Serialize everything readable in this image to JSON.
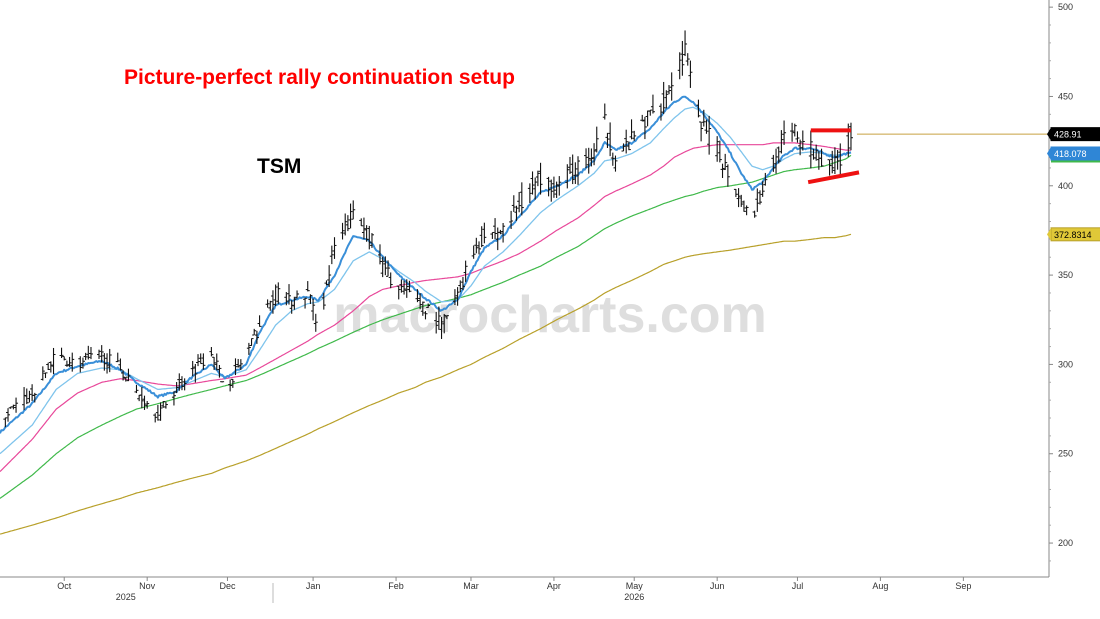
{
  "chart_data": {
    "type": "ohlc",
    "ticker": "TSM",
    "title": "Picture-perfect rally continuation setup",
    "watermark": "macrocharts.com",
    "ylim": [
      181,
      504
    ],
    "y_ticks": [
      200,
      250,
      300,
      350,
      400,
      450,
      500
    ],
    "x_months": [
      {
        "label": "Oct",
        "x": 8
      },
      {
        "label": "Nov",
        "x": 39
      },
      {
        "label": "Dec",
        "x": 69
      },
      {
        "label": "Jan",
        "x": 101
      },
      {
        "label": "Feb",
        "x": 132
      },
      {
        "label": "Mar",
        "x": 160
      },
      {
        "label": "Apr",
        "x": 191
      },
      {
        "label": "May",
        "x": 221
      },
      {
        "label": "Jun",
        "x": 252
      },
      {
        "label": "Jul",
        "x": 282
      },
      {
        "label": "Aug",
        "x": 313
      },
      {
        "label": "Sep",
        "x": 344
      }
    ],
    "x_years": [
      {
        "label": "2025",
        "x": 31
      },
      {
        "label": "2026",
        "x": 221
      }
    ],
    "x_range": [
      -16,
      376
    ],
    "price_anchors": [
      [
        -16,
        270
      ],
      [
        -4,
        283
      ],
      [
        5,
        305
      ],
      [
        13,
        300
      ],
      [
        22,
        305
      ],
      [
        29,
        298
      ],
      [
        35,
        285
      ],
      [
        43,
        272
      ],
      [
        50,
        287
      ],
      [
        55,
        295
      ],
      [
        63,
        308
      ],
      [
        68,
        287
      ],
      [
        76,
        305
      ],
      [
        81,
        322
      ],
      [
        87,
        340
      ],
      [
        93,
        335
      ],
      [
        99,
        340
      ],
      [
        103,
        322
      ],
      [
        109,
        365
      ],
      [
        116,
        385
      ],
      [
        122,
        372
      ],
      [
        127,
        355
      ],
      [
        133,
        342
      ],
      [
        139,
        338
      ],
      [
        143,
        332
      ],
      [
        149,
        322
      ],
      [
        155,
        338
      ],
      [
        160,
        362
      ],
      [
        165,
        372
      ],
      [
        172,
        375
      ],
      [
        178,
        390
      ],
      [
        186,
        405
      ],
      [
        192,
        400
      ],
      [
        200,
        410
      ],
      [
        206,
        418
      ],
      [
        210,
        435
      ],
      [
        214,
        415
      ],
      [
        220,
        425
      ],
      [
        227,
        440
      ],
      [
        232,
        448
      ],
      [
        236,
        462
      ],
      [
        240,
        476
      ],
      [
        243,
        450
      ],
      [
        247,
        432
      ],
      [
        252,
        420
      ],
      [
        257,
        405
      ],
      [
        261,
        392
      ],
      [
        265,
        382
      ],
      [
        269,
        398
      ],
      [
        273,
        412
      ],
      [
        277,
        425
      ],
      [
        281,
        430
      ],
      [
        287,
        420
      ],
      [
        292,
        415
      ],
      [
        296,
        412
      ],
      [
        300,
        420
      ],
      [
        302,
        428.91
      ]
    ],
    "ma_anchors": {
      "ema_fast": [
        [
          -16,
          262
        ],
        [
          -4,
          278
        ],
        [
          5,
          295
        ],
        [
          13,
          299
        ],
        [
          22,
          302
        ],
        [
          29,
          297
        ],
        [
          35,
          290
        ],
        [
          43,
          282
        ],
        [
          50,
          285
        ],
        [
          55,
          292
        ],
        [
          63,
          300
        ],
        [
          68,
          292
        ],
        [
          76,
          300
        ],
        [
          81,
          318
        ],
        [
          87,
          333
        ],
        [
          93,
          336
        ],
        [
          99,
          338
        ],
        [
          103,
          336
        ],
        [
          109,
          350
        ],
        [
          116,
          372
        ],
        [
          122,
          369
        ],
        [
          127,
          360
        ],
        [
          133,
          350
        ],
        [
          139,
          342
        ],
        [
          143,
          337
        ],
        [
          149,
          330
        ],
        [
          155,
          336
        ],
        [
          160,
          352
        ],
        [
          165,
          365
        ],
        [
          172,
          372
        ],
        [
          178,
          383
        ],
        [
          186,
          396
        ],
        [
          192,
          400
        ],
        [
          200,
          406
        ],
        [
          206,
          414
        ],
        [
          210,
          424
        ],
        [
          214,
          420
        ],
        [
          220,
          424
        ],
        [
          227,
          432
        ],
        [
          232,
          441
        ],
        [
          236,
          447
        ],
        [
          240,
          450
        ],
        [
          243,
          447
        ],
        [
          247,
          440
        ],
        [
          252,
          430
        ],
        [
          257,
          418
        ],
        [
          261,
          407
        ],
        [
          265,
          398
        ],
        [
          269,
          402
        ],
        [
          273,
          410
        ],
        [
          277,
          417
        ],
        [
          281,
          421
        ],
        [
          287,
          421
        ],
        [
          292,
          418
        ],
        [
          296,
          416
        ],
        [
          300,
          418
        ],
        [
          302,
          418.078
        ]
      ],
      "ema_slow": [
        [
          -16,
          250
        ],
        [
          -4,
          266
        ],
        [
          5,
          286
        ],
        [
          13,
          295
        ],
        [
          22,
          298
        ],
        [
          29,
          297
        ],
        [
          35,
          292
        ],
        [
          43,
          286
        ],
        [
          50,
          287
        ],
        [
          55,
          290
        ],
        [
          63,
          295
        ],
        [
          68,
          293
        ],
        [
          76,
          297
        ],
        [
          81,
          308
        ],
        [
          87,
          322
        ],
        [
          93,
          330
        ],
        [
          99,
          334
        ],
        [
          103,
          335
        ],
        [
          109,
          342
        ],
        [
          116,
          358
        ],
        [
          122,
          363
        ],
        [
          127,
          359
        ],
        [
          133,
          352
        ],
        [
          139,
          346
        ],
        [
          143,
          341
        ],
        [
          149,
          335
        ],
        [
          155,
          336
        ],
        [
          160,
          344
        ],
        [
          165,
          355
        ],
        [
          172,
          363
        ],
        [
          178,
          372
        ],
        [
          186,
          385
        ],
        [
          192,
          392
        ],
        [
          200,
          400
        ],
        [
          206,
          407
        ],
        [
          210,
          414
        ],
        [
          214,
          415
        ],
        [
          220,
          418
        ],
        [
          227,
          424
        ],
        [
          232,
          432
        ],
        [
          236,
          438
        ],
        [
          240,
          443
        ],
        [
          243,
          444
        ],
        [
          247,
          441
        ],
        [
          252,
          435
        ],
        [
          257,
          427
        ],
        [
          261,
          419
        ],
        [
          265,
          411
        ],
        [
          269,
          409
        ],
        [
          273,
          411
        ],
        [
          277,
          415
        ],
        [
          281,
          418
        ],
        [
          287,
          419
        ],
        [
          292,
          418
        ],
        [
          296,
          417
        ],
        [
          300,
          418
        ],
        [
          302,
          419
        ]
      ],
      "sma_50": [
        [
          -16,
          240
        ],
        [
          -4,
          258
        ],
        [
          5,
          275
        ],
        [
          13,
          284
        ],
        [
          22,
          290
        ],
        [
          29,
          292
        ],
        [
          35,
          291
        ],
        [
          43,
          289
        ],
        [
          50,
          288
        ],
        [
          55,
          289
        ],
        [
          63,
          291
        ],
        [
          68,
          292
        ],
        [
          76,
          294
        ],
        [
          81,
          298
        ],
        [
          87,
          303
        ],
        [
          93,
          308
        ],
        [
          99,
          313
        ],
        [
          103,
          317
        ],
        [
          109,
          322
        ],
        [
          116,
          330
        ],
        [
          122,
          338
        ],
        [
          127,
          342
        ],
        [
          133,
          344
        ],
        [
          139,
          346
        ],
        [
          143,
          347
        ],
        [
          149,
          348
        ],
        [
          155,
          349
        ],
        [
          160,
          351
        ],
        [
          165,
          354
        ],
        [
          172,
          358
        ],
        [
          178,
          362
        ],
        [
          186,
          369
        ],
        [
          192,
          375
        ],
        [
          200,
          382
        ],
        [
          206,
          389
        ],
        [
          210,
          394
        ],
        [
          214,
          397
        ],
        [
          220,
          401
        ],
        [
          227,
          406
        ],
        [
          232,
          411
        ],
        [
          236,
          416
        ],
        [
          240,
          419
        ],
        [
          243,
          421
        ],
        [
          247,
          422
        ],
        [
          252,
          423
        ],
        [
          257,
          423
        ],
        [
          261,
          423
        ],
        [
          265,
          423
        ],
        [
          269,
          423
        ],
        [
          273,
          424
        ],
        [
          277,
          424
        ],
        [
          281,
          424
        ],
        [
          287,
          423
        ],
        [
          292,
          422
        ],
        [
          296,
          421
        ],
        [
          300,
          420
        ],
        [
          302,
          420
        ]
      ],
      "sma_100": [
        [
          -16,
          225
        ],
        [
          -4,
          238
        ],
        [
          5,
          250
        ],
        [
          13,
          259
        ],
        [
          22,
          266
        ],
        [
          29,
          271
        ],
        [
          35,
          275
        ],
        [
          43,
          278
        ],
        [
          50,
          281
        ],
        [
          55,
          283
        ],
        [
          63,
          286
        ],
        [
          68,
          288
        ],
        [
          76,
          291
        ],
        [
          81,
          294
        ],
        [
          87,
          298
        ],
        [
          93,
          302
        ],
        [
          99,
          306
        ],
        [
          103,
          309
        ],
        [
          109,
          313
        ],
        [
          116,
          318
        ],
        [
          122,
          322
        ],
        [
          127,
          325
        ],
        [
          133,
          328
        ],
        [
          139,
          331
        ],
        [
          143,
          333
        ],
        [
          149,
          335
        ],
        [
          155,
          337
        ],
        [
          160,
          339
        ],
        [
          165,
          342
        ],
        [
          172,
          346
        ],
        [
          178,
          350
        ],
        [
          186,
          355
        ],
        [
          192,
          360
        ],
        [
          200,
          366
        ],
        [
          206,
          372
        ],
        [
          210,
          376
        ],
        [
          214,
          379
        ],
        [
          220,
          383
        ],
        [
          227,
          387
        ],
        [
          232,
          390
        ],
        [
          236,
          392
        ],
        [
          240,
          394
        ],
        [
          243,
          395
        ],
        [
          247,
          397
        ],
        [
          252,
          399
        ],
        [
          257,
          400
        ],
        [
          261,
          401
        ],
        [
          265,
          402
        ],
        [
          269,
          404
        ],
        [
          273,
          406
        ],
        [
          277,
          408
        ],
        [
          281,
          409
        ],
        [
          287,
          410
        ],
        [
          292,
          411
        ],
        [
          296,
          413
        ],
        [
          300,
          415
        ],
        [
          302,
          417
        ]
      ],
      "sma_200": [
        [
          -16,
          205
        ],
        [
          -4,
          210
        ],
        [
          5,
          214
        ],
        [
          13,
          218
        ],
        [
          22,
          222
        ],
        [
          29,
          225
        ],
        [
          35,
          228
        ],
        [
          43,
          231
        ],
        [
          50,
          234
        ],
        [
          55,
          236
        ],
        [
          63,
          239
        ],
        [
          68,
          242
        ],
        [
          76,
          246
        ],
        [
          81,
          249
        ],
        [
          87,
          253
        ],
        [
          93,
          257
        ],
        [
          99,
          261
        ],
        [
          103,
          264
        ],
        [
          109,
          268
        ],
        [
          116,
          273
        ],
        [
          122,
          277
        ],
        [
          127,
          280
        ],
        [
          133,
          284
        ],
        [
          139,
          287
        ],
        [
          143,
          290
        ],
        [
          149,
          293
        ],
        [
          155,
          297
        ],
        [
          160,
          300
        ],
        [
          165,
          304
        ],
        [
          172,
          309
        ],
        [
          178,
          314
        ],
        [
          186,
          320
        ],
        [
          192,
          325
        ],
        [
          200,
          331
        ],
        [
          206,
          336
        ],
        [
          210,
          340
        ],
        [
          214,
          343
        ],
        [
          220,
          347
        ],
        [
          227,
          352
        ],
        [
          232,
          356
        ],
        [
          236,
          358
        ],
        [
          240,
          360
        ],
        [
          243,
          361
        ],
        [
          247,
          362
        ],
        [
          252,
          363
        ],
        [
          257,
          364
        ],
        [
          261,
          365
        ],
        [
          265,
          366
        ],
        [
          269,
          367
        ],
        [
          273,
          368
        ],
        [
          277,
          369
        ],
        [
          281,
          369
        ],
        [
          287,
          370
        ],
        [
          292,
          371
        ],
        [
          296,
          371
        ],
        [
          300,
          372
        ],
        [
          302,
          372.83
        ]
      ]
    },
    "series_colors": {
      "price": "#111111",
      "ema_fast": "#3a8fd8",
      "ema_slow": "#7fc4ec",
      "sma_50": "#e8489a",
      "sma_100": "#3fb94a",
      "sma_200": "#b8a02a",
      "annotation": "#ee1111",
      "last_line": "#c8a040"
    },
    "annotations": {
      "resistance": [
        [
          287,
          431
        ],
        [
          302,
          431
        ]
      ],
      "support": [
        [
          286,
          402
        ],
        [
          305,
          407.5
        ]
      ]
    },
    "last_price_line": 428.91,
    "price_tags": [
      {
        "value": 428.91,
        "label": "428.91",
        "bg": "#000000",
        "fg": "#ffffff",
        "border": "#000000"
      },
      {
        "value": 418.078,
        "label": "418.078",
        "bg": "#2f86d6",
        "fg": "#ffffff",
        "border": "#2f86d6"
      },
      {
        "value": 372.83,
        "label": "372.8314",
        "bg": "#e0c838",
        "fg": "#000000",
        "border": "#b8a02a"
      }
    ],
    "tag_colors_small": [
      "#7fc4ec",
      "#e8489a",
      "#3fb94a"
    ]
  }
}
